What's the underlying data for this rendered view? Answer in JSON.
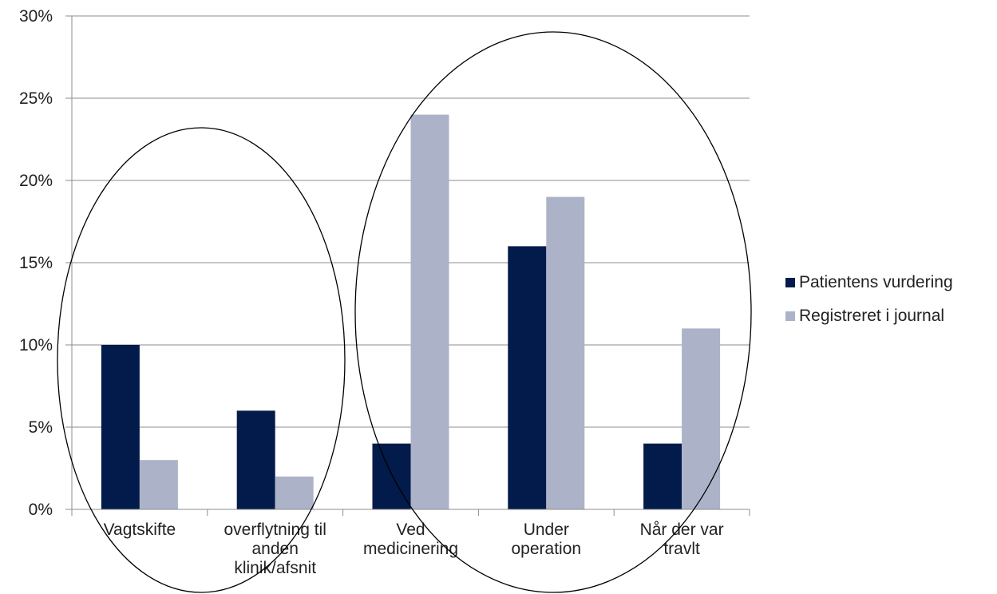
{
  "chart_data": {
    "type": "bar",
    "categories": [
      [
        "Vagtskifte"
      ],
      [
        "overflytning til",
        "anden",
        "klinik/afsnit"
      ],
      [
        "Ved",
        "medicinering"
      ],
      [
        "Under",
        "operation"
      ],
      [
        "Når der var",
        "travlt"
      ]
    ],
    "series": [
      {
        "name": "Patientens vurdering",
        "color": "#031b4a",
        "values": [
          10,
          6,
          4,
          16,
          4
        ]
      },
      {
        "name": "Registreret i journal",
        "color": "#acb3c8",
        "values": [
          3,
          2,
          24,
          19,
          11
        ]
      }
    ],
    "y_ticks": [
      "0%",
      "5%",
      "10%",
      "15%",
      "20%",
      "25%",
      "30%"
    ],
    "ylim": [
      0,
      30
    ],
    "y_unit": "%",
    "grid": true,
    "legend_position": "right",
    "annotations": [
      {
        "type": "ellipse",
        "encloses": [
          "Vagtskifte",
          "overflytning til anden klinik/afsnit"
        ]
      },
      {
        "type": "ellipse",
        "encloses": [
          "Ved medicinering",
          "Under operation",
          "Når der var travlt"
        ]
      }
    ]
  }
}
